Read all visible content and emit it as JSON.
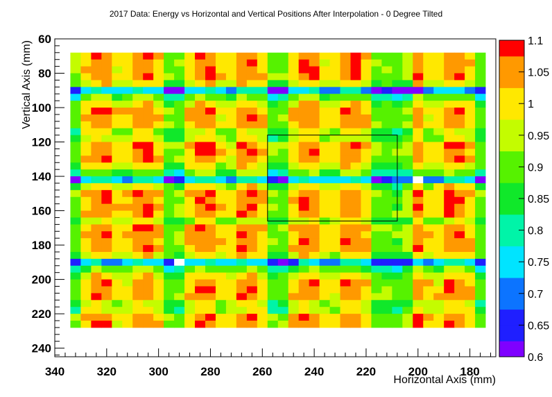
{
  "chart_data": {
    "type": "heatmap",
    "title": "2017 Data: Energy vs Horizontal and Vertical Positions After Interpolation - 0 Degree Tilted",
    "xlabel": "Horizontal Axis (mm)",
    "ylabel": "Vertical Axis (mm)",
    "x_axis_reversed": true,
    "y_axis_reversed": true,
    "xlim": [
      340,
      170
    ],
    "ylim": [
      245,
      60
    ],
    "x_ticks": [
      "340",
      "320",
      "300",
      "280",
      "260",
      "240",
      "220",
      "200",
      "180"
    ],
    "y_ticks": [
      "60",
      "80",
      "100",
      "120",
      "140",
      "160",
      "180",
      "200",
      "220",
      "240"
    ],
    "colorbar": {
      "range": [
        0.6,
        1.1
      ],
      "labels": [
        "1.1",
        "1.05",
        "1",
        "0.95",
        "0.9",
        "0.85",
        "0.8",
        "0.75",
        "0.7",
        "0.65",
        "0.6"
      ]
    },
    "cell_grid": {
      "x_range_mm": [
        334,
        174
      ],
      "y_range_mm": [
        68,
        228
      ],
      "cell_size_mm": 4,
      "cols": 40,
      "rows": 40,
      "module_size_mm": 40,
      "crack_columns_mm": [
        294,
        254,
        214
      ],
      "vertical_crack_edges_mm": [
        203,
        207
      ],
      "horizontal_crack_rows_mm": [
        91,
        141,
        191
      ],
      "low_spots": [
        {
          "x": 202,
          "y": 142,
          "value": 0.0
        },
        {
          "x": 292,
          "y": 190,
          "value": 0.0
        },
        {
          "x": 202,
          "y": 91,
          "value": 0.62
        },
        {
          "x": 248,
          "y": 190,
          "value": 0.64
        },
        {
          "x": 318,
          "y": 190,
          "value": 0.68
        },
        {
          "x": 206,
          "y": 142,
          "value": 0.68
        },
        {
          "x": 176,
          "y": 190,
          "value": 0.66
        }
      ]
    },
    "box": {
      "x": [
        208,
        258
      ],
      "y": [
        116,
        166
      ]
    }
  }
}
